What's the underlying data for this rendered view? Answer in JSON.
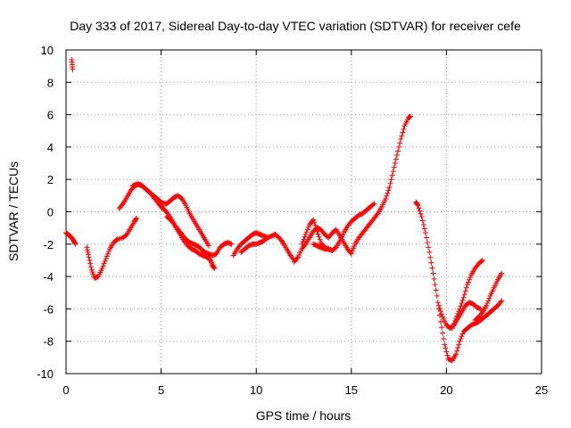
{
  "chart_data": {
    "type": "scatter",
    "title": "Day 333 of 2017, Sidereal Day-to-day VTEC variation (SDTVAR) for receiver cefe",
    "xlabel": "GPS time / hours",
    "ylabel": "SDTVAR / TECUs",
    "xlim": [
      0,
      25
    ],
    "ylim": [
      -10,
      10
    ],
    "x_ticks": [
      0,
      5,
      10,
      15,
      20,
      25
    ],
    "y_ticks": [
      -10,
      -8,
      -6,
      -4,
      -2,
      0,
      2,
      4,
      6,
      8,
      10
    ],
    "grid": true,
    "marker": "plus",
    "color": "#ff0000",
    "series": [
      {
        "x": [
          0.3,
          0.35
        ],
        "y": [
          9.4,
          8.8
        ]
      },
      {
        "x": [
          0.0,
          0.1,
          0.2,
          0.3,
          0.4,
          0.5
        ],
        "y": [
          -1.3,
          -1.4,
          -1.5,
          -1.6,
          -1.8,
          -2.0
        ]
      },
      {
        "x": [
          1.1,
          1.2,
          1.35,
          1.5,
          1.7,
          1.9,
          2.1,
          2.3,
          2.5,
          2.7,
          3.0,
          3.2,
          3.4,
          3.6,
          3.7
        ],
        "y": [
          -2.2,
          -2.8,
          -3.6,
          -4.1,
          -4.0,
          -3.5,
          -2.9,
          -2.3,
          -1.9,
          -1.7,
          -1.6,
          -1.4,
          -1.0,
          -0.6,
          -0.4
        ]
      },
      {
        "x": [
          2.8,
          3.0,
          3.2,
          3.4,
          3.6,
          3.8,
          4.0,
          4.2,
          4.4,
          4.6,
          4.8,
          5.0,
          5.2,
          5.4,
          5.6,
          5.8,
          6.0,
          6.2,
          6.4,
          6.6,
          6.8,
          7.0,
          7.2,
          7.4,
          7.6,
          7.7,
          7.8
        ],
        "y": [
          0.2,
          0.5,
          0.9,
          1.3,
          1.6,
          1.7,
          1.6,
          1.4,
          1.2,
          0.9,
          0.6,
          0.3,
          0.1,
          -0.2,
          -0.6,
          -1.0,
          -1.4,
          -1.8,
          -2.1,
          -2.3,
          -2.4,
          -2.6,
          -2.7,
          -2.8,
          -3.0,
          -3.3,
          -3.5
        ]
      },
      {
        "x": [
          3.5,
          3.7,
          3.9,
          4.1,
          4.3,
          4.5,
          4.7,
          4.9,
          5.1,
          5.3,
          5.5,
          5.7,
          5.9,
          6.1,
          6.3,
          6.5,
          6.7,
          6.9,
          7.1,
          7.3,
          7.5
        ],
        "y": [
          1.6,
          1.7,
          1.7,
          1.5,
          1.3,
          1.1,
          0.9,
          0.7,
          0.5,
          0.5,
          0.7,
          0.9,
          1.0,
          0.8,
          0.4,
          -0.1,
          -0.5,
          -0.9,
          -1.3,
          -1.7,
          -2.1
        ]
      },
      {
        "x": [
          5.3,
          5.5,
          5.7,
          5.9,
          6.1,
          6.3,
          6.5,
          6.7,
          6.9,
          7.1,
          7.3,
          7.5,
          7.7,
          7.9,
          8.1,
          8.3,
          8.5,
          8.7
        ],
        "y": [
          -0.3,
          -0.5,
          -0.8,
          -1.1,
          -1.4,
          -1.7,
          -1.9,
          -2.0,
          -2.1,
          -2.3,
          -2.5,
          -2.6,
          -2.7,
          -2.6,
          -2.2,
          -2.0,
          -1.9,
          -2.0
        ]
      },
      {
        "x": [
          8.8,
          9.0,
          9.2,
          9.4,
          9.6,
          9.8,
          10.0,
          10.2,
          10.4,
          10.6,
          10.8,
          11.0,
          11.2,
          11.4,
          11.6,
          11.8,
          12.0
        ],
        "y": [
          -2.7,
          -2.3,
          -2.0,
          -1.8,
          -1.6,
          -1.4,
          -1.3,
          -1.4,
          -1.5,
          -1.6,
          -1.5,
          -1.4,
          -1.6,
          -1.9,
          -2.3,
          -2.7,
          -3.0
        ]
      },
      {
        "x": [
          9.2,
          9.4,
          9.6,
          9.8,
          10.0,
          10.2,
          10.4,
          10.6
        ],
        "y": [
          -2.5,
          -2.3,
          -2.1,
          -2.0,
          -2.0,
          -1.9,
          -1.8,
          -1.6
        ]
      },
      {
        "x": [
          12.0,
          12.2,
          12.4,
          12.6,
          12.8,
          13.0,
          13.2,
          13.4,
          13.6,
          13.8,
          14.0,
          14.2,
          14.4,
          14.6,
          14.8,
          15.0
        ],
        "y": [
          -3.1,
          -2.8,
          -2.3,
          -2.0,
          -1.6,
          -1.2,
          -1.0,
          -1.1,
          -1.4,
          -1.6,
          -1.3,
          -1.1,
          -1.5,
          -1.9,
          -2.3,
          -2.6
        ]
      },
      {
        "x": [
          12.4,
          12.6,
          12.8,
          13.0,
          13.2,
          13.4,
          13.6,
          13.8,
          14.0
        ],
        "y": [
          -2.0,
          -1.4,
          -0.8,
          -0.5,
          -1.2,
          -1.9,
          -2.2,
          -2.3,
          -2.4
        ]
      },
      {
        "x": [
          13.0,
          13.2,
          13.4,
          13.6,
          13.8,
          14.0,
          14.2,
          14.4,
          14.6,
          14.8,
          15.0,
          15.2,
          15.4,
          15.6,
          15.8,
          16.0,
          16.2
        ],
        "y": [
          -2.0,
          -2.1,
          -2.2,
          -2.3,
          -2.3,
          -2.4,
          -2.2,
          -1.8,
          -1.3,
          -0.9,
          -0.6,
          -0.4,
          -0.2,
          -0.1,
          0.1,
          0.3,
          0.5
        ]
      },
      {
        "x": [
          15.0,
          15.2,
          15.4,
          15.6,
          15.8,
          16.0,
          16.2,
          16.4,
          16.6,
          16.8,
          17.0,
          17.2,
          17.4,
          17.6,
          17.8,
          18.0,
          18.1
        ],
        "y": [
          -2.5,
          -2.0,
          -1.6,
          -1.3,
          -1.0,
          -0.7,
          -0.4,
          -0.1,
          0.3,
          0.8,
          1.5,
          2.5,
          3.5,
          4.5,
          5.3,
          5.8,
          5.9
        ]
      },
      {
        "x": [
          18.4,
          18.5,
          18.7,
          18.9,
          19.1,
          19.3,
          19.5,
          19.7,
          19.9,
          20.1,
          20.3,
          20.5,
          20.7,
          20.9,
          21.1,
          21.3,
          21.5,
          21.7,
          21.9,
          22.1,
          22.3,
          22.5,
          22.7,
          22.9
        ],
        "y": [
          0.6,
          0.4,
          -0.3,
          -1.3,
          -2.5,
          -3.8,
          -5.2,
          -6.8,
          -8.2,
          -9.1,
          -9.2,
          -8.8,
          -8.0,
          -7.4,
          -7.2,
          -7.0,
          -6.9,
          -6.8,
          -6.6,
          -6.4,
          -6.2,
          -6.0,
          -5.8,
          -5.5
        ]
      },
      {
        "x": [
          19.6,
          19.8,
          20.0,
          20.2,
          20.4,
          20.6,
          20.8,
          21.0,
          21.2,
          21.4,
          21.6,
          21.8
        ],
        "y": [
          -5.8,
          -6.5,
          -7.0,
          -7.2,
          -7.0,
          -6.6,
          -6.2,
          -5.8,
          -5.6,
          -5.7,
          -5.9,
          -6.0
        ]
      },
      {
        "x": [
          20.3,
          20.5,
          20.7,
          20.9,
          21.1,
          21.3,
          21.5,
          21.7,
          21.9
        ],
        "y": [
          -7.2,
          -6.6,
          -6.0,
          -5.3,
          -4.5,
          -3.9,
          -3.5,
          -3.2,
          -3.0
        ]
      },
      {
        "x": [
          21.5,
          21.7,
          21.9,
          22.1,
          22.3,
          22.5,
          22.7,
          22.9
        ],
        "y": [
          -6.7,
          -6.5,
          -6.2,
          -5.8,
          -5.2,
          -4.7,
          -4.2,
          -3.8
        ]
      }
    ]
  }
}
